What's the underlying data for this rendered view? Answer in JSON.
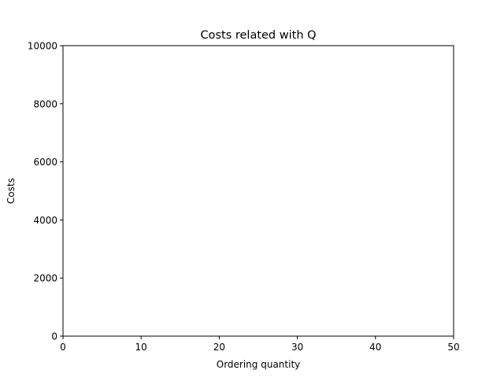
{
  "chart_data": {
    "type": "line",
    "title": "Costs related with Q",
    "xlabel": "Ordering quantity",
    "ylabel": "Costs",
    "xlim": [
      0,
      50
    ],
    "ylim": [
      0,
      10000
    ],
    "x_ticks": [
      0,
      10,
      20,
      30,
      40,
      50
    ],
    "y_ticks": [
      0,
      2000,
      4000,
      6000,
      8000,
      10000
    ],
    "grid": false,
    "legend": "none",
    "series": []
  }
}
